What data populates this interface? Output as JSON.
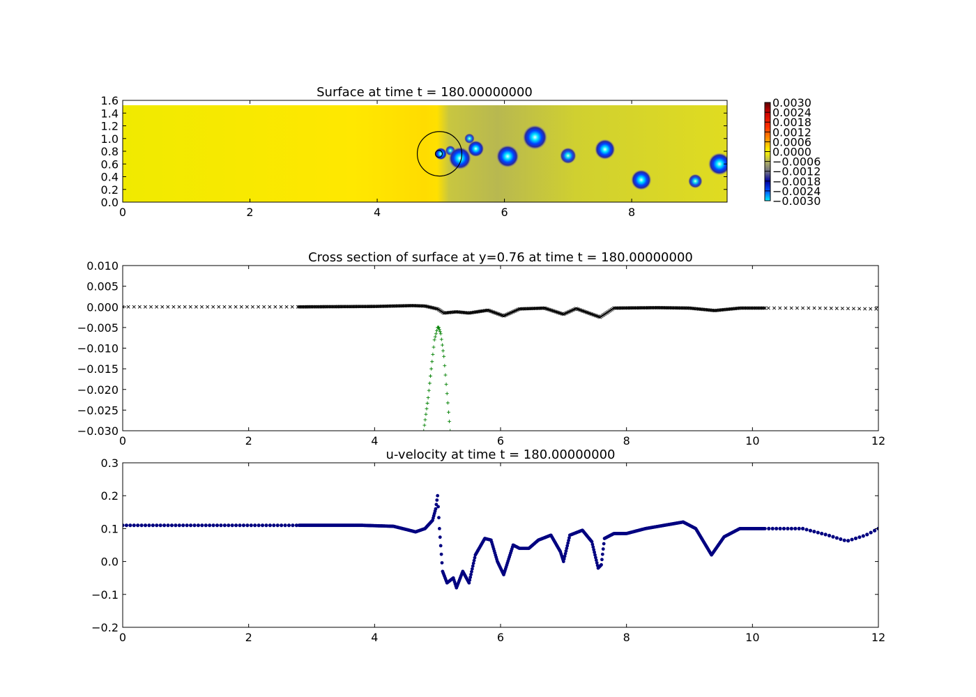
{
  "chart_data": [
    {
      "type": "heatmap",
      "title": "Surface at time t =   180.00000000",
      "xlim": [
        0,
        9.5
      ],
      "ylim": [
        0,
        1.6
      ],
      "xticks": [
        "0",
        "2",
        "4",
        "6",
        "8"
      ],
      "yticks": [
        "0.0",
        "0.2",
        "0.4",
        "0.6",
        "0.8",
        "1.0",
        "1.2",
        "1.4",
        "1.6"
      ],
      "domain_ymax": 1.52,
      "colorbar": {
        "ticks": [
          "0.0030",
          "0.0024",
          "0.0018",
          "0.0012",
          "0.0006",
          "0.0000",
          "−0.0006",
          "−0.0012",
          "−0.0018",
          "−0.0024",
          "−0.0030"
        ],
        "range": [
          -0.003,
          0.003
        ]
      },
      "vortices": [
        {
          "x": 5.0,
          "y": 0.76,
          "r": 0.06,
          "value": -0.003
        },
        {
          "x": 5.15,
          "y": 0.81,
          "r": 0.05,
          "value": -0.002
        },
        {
          "x": 5.3,
          "y": 0.69,
          "r": 0.11,
          "value": -0.003
        },
        {
          "x": 5.45,
          "y": 1.0,
          "r": 0.05,
          "value": -0.002
        },
        {
          "x": 5.55,
          "y": 0.84,
          "r": 0.08,
          "value": -0.003
        },
        {
          "x": 6.05,
          "y": 0.72,
          "r": 0.11,
          "value": -0.003
        },
        {
          "x": 6.48,
          "y": 1.02,
          "r": 0.12,
          "value": -0.003
        },
        {
          "x": 7.0,
          "y": 0.73,
          "r": 0.08,
          "value": -0.0024
        },
        {
          "x": 7.58,
          "y": 0.83,
          "r": 0.1,
          "value": -0.003
        },
        {
          "x": 8.15,
          "y": 0.35,
          "r": 0.1,
          "value": -0.003
        },
        {
          "x": 9.0,
          "y": 0.33,
          "r": 0.07,
          "value": -0.0024
        },
        {
          "x": 9.38,
          "y": 0.6,
          "r": 0.11,
          "value": -0.003
        }
      ],
      "circle": {
        "x": 4.98,
        "y": 0.76,
        "r": 0.35
      }
    },
    {
      "type": "scatter",
      "title": "Cross section of surface at y=0.76 at time t =   180.00000000",
      "xlim": [
        0,
        12
      ],
      "ylim": [
        -0.03,
        0.01
      ],
      "xticks": [
        "0",
        "2",
        "4",
        "6",
        "8",
        "10",
        "12"
      ],
      "yticks": [
        "0.010",
        "0.005",
        "0.000",
        "−0.005",
        "−0.010",
        "−0.015",
        "−0.020",
        "−0.025",
        "−0.030"
      ],
      "series": [
        {
          "marker": "x",
          "color": "#000000",
          "x": [
            0,
            2.8,
            4.0,
            4.6,
            4.8,
            5.0,
            5.1,
            5.3,
            5.5,
            5.8,
            6.05,
            6.3,
            6.7,
            7.0,
            7.2,
            7.58,
            7.8,
            8.5,
            9.0,
            9.4,
            9.8,
            10.2,
            11.0,
            12.0
          ],
          "y": [
            0.0,
            0.0,
            0.0001,
            0.0003,
            0.0002,
            -0.0005,
            -0.0015,
            -0.0012,
            -0.0015,
            -0.0008,
            -0.0022,
            -0.0005,
            -0.0003,
            -0.0018,
            -0.0004,
            -0.0025,
            -0.0003,
            -0.0002,
            -0.0003,
            -0.0009,
            -0.0003,
            -0.0003,
            -0.0003,
            -0.0005
          ]
        },
        {
          "marker": "+",
          "color": "#008000",
          "x": [
            4.78,
            4.85,
            4.9,
            4.95,
            5.0,
            5.02,
            5.05,
            5.1,
            5.15,
            5.2
          ],
          "y": [
            -0.03,
            -0.022,
            -0.015,
            -0.008,
            -0.005,
            -0.005,
            -0.0065,
            -0.012,
            -0.021,
            -0.03
          ]
        }
      ]
    },
    {
      "type": "scatter",
      "title": "u-velocity at time t =   180.00000000",
      "xlim": [
        0,
        12
      ],
      "ylim": [
        -0.2,
        0.3
      ],
      "xticks": [
        "0",
        "2",
        "4",
        "6",
        "8",
        "10",
        "12"
      ],
      "yticks": [
        "0.3",
        "0.2",
        "0.1",
        "0.0",
        "−0.1",
        "−0.2"
      ],
      "series": [
        {
          "marker": "o",
          "color": "#000080",
          "x": [
            0,
            2.8,
            3.8,
            4.3,
            4.55,
            4.65,
            4.8,
            4.92,
            4.97,
            5.0,
            5.03,
            5.08,
            5.15,
            5.25,
            5.3,
            5.4,
            5.5,
            5.6,
            5.75,
            5.85,
            5.95,
            6.05,
            6.15,
            6.2,
            6.3,
            6.45,
            6.6,
            6.8,
            6.95,
            7.0,
            7.1,
            7.3,
            7.45,
            7.55,
            7.6,
            7.65,
            7.8,
            8.0,
            8.3,
            8.6,
            8.9,
            9.1,
            9.35,
            9.55,
            9.8,
            10.2,
            10.8,
            11.2,
            11.5,
            11.8,
            12.0
          ],
          "y": [
            0.11,
            0.11,
            0.11,
            0.107,
            0.095,
            0.09,
            0.1,
            0.125,
            0.16,
            0.2,
            0.1,
            -0.03,
            -0.065,
            -0.05,
            -0.08,
            -0.03,
            -0.065,
            0.02,
            0.07,
            0.065,
            0.0,
            -0.04,
            0.02,
            0.05,
            0.04,
            0.04,
            0.065,
            0.08,
            0.03,
            0.0,
            0.08,
            0.095,
            0.06,
            -0.02,
            -0.01,
            0.07,
            0.085,
            0.085,
            0.1,
            0.11,
            0.12,
            0.1,
            0.02,
            0.075,
            0.1,
            0.1,
            0.1,
            0.08,
            0.062,
            0.08,
            0.1
          ]
        }
      ]
    }
  ]
}
